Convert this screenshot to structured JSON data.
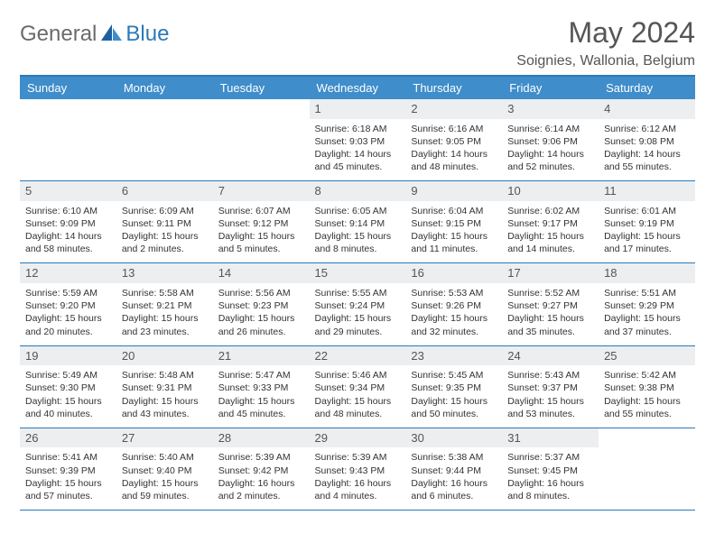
{
  "logo": {
    "text1": "General",
    "text2": "Blue"
  },
  "title": "May 2024",
  "location": "Soignies, Wallonia, Belgium",
  "colors": {
    "header_bg": "#3f8dca",
    "border": "#2a7ab9",
    "daynum_bg": "#eceef0",
    "text": "#333333"
  },
  "days": [
    "Sunday",
    "Monday",
    "Tuesday",
    "Wednesday",
    "Thursday",
    "Friday",
    "Saturday"
  ],
  "weeks": [
    [
      null,
      null,
      null,
      {
        "n": "1",
        "sr": "6:18 AM",
        "ss": "9:03 PM",
        "dl": "14 hours and 45 minutes."
      },
      {
        "n": "2",
        "sr": "6:16 AM",
        "ss": "9:05 PM",
        "dl": "14 hours and 48 minutes."
      },
      {
        "n": "3",
        "sr": "6:14 AM",
        "ss": "9:06 PM",
        "dl": "14 hours and 52 minutes."
      },
      {
        "n": "4",
        "sr": "6:12 AM",
        "ss": "9:08 PM",
        "dl": "14 hours and 55 minutes."
      }
    ],
    [
      {
        "n": "5",
        "sr": "6:10 AM",
        "ss": "9:09 PM",
        "dl": "14 hours and 58 minutes."
      },
      {
        "n": "6",
        "sr": "6:09 AM",
        "ss": "9:11 PM",
        "dl": "15 hours and 2 minutes."
      },
      {
        "n": "7",
        "sr": "6:07 AM",
        "ss": "9:12 PM",
        "dl": "15 hours and 5 minutes."
      },
      {
        "n": "8",
        "sr": "6:05 AM",
        "ss": "9:14 PM",
        "dl": "15 hours and 8 minutes."
      },
      {
        "n": "9",
        "sr": "6:04 AM",
        "ss": "9:15 PM",
        "dl": "15 hours and 11 minutes."
      },
      {
        "n": "10",
        "sr": "6:02 AM",
        "ss": "9:17 PM",
        "dl": "15 hours and 14 minutes."
      },
      {
        "n": "11",
        "sr": "6:01 AM",
        "ss": "9:19 PM",
        "dl": "15 hours and 17 minutes."
      }
    ],
    [
      {
        "n": "12",
        "sr": "5:59 AM",
        "ss": "9:20 PM",
        "dl": "15 hours and 20 minutes."
      },
      {
        "n": "13",
        "sr": "5:58 AM",
        "ss": "9:21 PM",
        "dl": "15 hours and 23 minutes."
      },
      {
        "n": "14",
        "sr": "5:56 AM",
        "ss": "9:23 PM",
        "dl": "15 hours and 26 minutes."
      },
      {
        "n": "15",
        "sr": "5:55 AM",
        "ss": "9:24 PM",
        "dl": "15 hours and 29 minutes."
      },
      {
        "n": "16",
        "sr": "5:53 AM",
        "ss": "9:26 PM",
        "dl": "15 hours and 32 minutes."
      },
      {
        "n": "17",
        "sr": "5:52 AM",
        "ss": "9:27 PM",
        "dl": "15 hours and 35 minutes."
      },
      {
        "n": "18",
        "sr": "5:51 AM",
        "ss": "9:29 PM",
        "dl": "15 hours and 37 minutes."
      }
    ],
    [
      {
        "n": "19",
        "sr": "5:49 AM",
        "ss": "9:30 PM",
        "dl": "15 hours and 40 minutes."
      },
      {
        "n": "20",
        "sr": "5:48 AM",
        "ss": "9:31 PM",
        "dl": "15 hours and 43 minutes."
      },
      {
        "n": "21",
        "sr": "5:47 AM",
        "ss": "9:33 PM",
        "dl": "15 hours and 45 minutes."
      },
      {
        "n": "22",
        "sr": "5:46 AM",
        "ss": "9:34 PM",
        "dl": "15 hours and 48 minutes."
      },
      {
        "n": "23",
        "sr": "5:45 AM",
        "ss": "9:35 PM",
        "dl": "15 hours and 50 minutes."
      },
      {
        "n": "24",
        "sr": "5:43 AM",
        "ss": "9:37 PM",
        "dl": "15 hours and 53 minutes."
      },
      {
        "n": "25",
        "sr": "5:42 AM",
        "ss": "9:38 PM",
        "dl": "15 hours and 55 minutes."
      }
    ],
    [
      {
        "n": "26",
        "sr": "5:41 AM",
        "ss": "9:39 PM",
        "dl": "15 hours and 57 minutes."
      },
      {
        "n": "27",
        "sr": "5:40 AM",
        "ss": "9:40 PM",
        "dl": "15 hours and 59 minutes."
      },
      {
        "n": "28",
        "sr": "5:39 AM",
        "ss": "9:42 PM",
        "dl": "16 hours and 2 minutes."
      },
      {
        "n": "29",
        "sr": "5:39 AM",
        "ss": "9:43 PM",
        "dl": "16 hours and 4 minutes."
      },
      {
        "n": "30",
        "sr": "5:38 AM",
        "ss": "9:44 PM",
        "dl": "16 hours and 6 minutes."
      },
      {
        "n": "31",
        "sr": "5:37 AM",
        "ss": "9:45 PM",
        "dl": "16 hours and 8 minutes."
      },
      null
    ]
  ]
}
